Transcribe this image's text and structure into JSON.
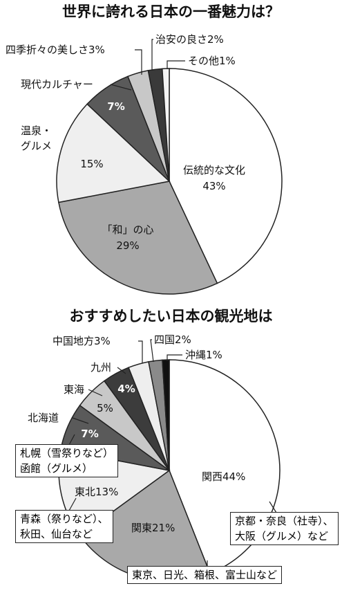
{
  "chart_data": [
    {
      "type": "pie",
      "title": "世界に誇れる日本の一番魅力は？",
      "categories": [
        "伝統的な文化",
        "「和」の心",
        "温泉・\nグルメ",
        "現代カルチャー",
        "四季折々の美しさ",
        "治安の良さ",
        "その他"
      ],
      "values": [
        43,
        29,
        15,
        7,
        3,
        2,
        1
      ],
      "value_labels": [
        "43%",
        "29%",
        "15%",
        "7%",
        "3%",
        "2%",
        "1%"
      ],
      "colors": [
        "#ffffff",
        "#a9a9a9",
        "#efefef",
        "#5a5a5a",
        "#c8c8c8",
        "#3a3a3a",
        "#f4f4f4"
      ]
    },
    {
      "type": "pie",
      "title": "おすすめしたい日本の観光地は",
      "categories": [
        "関西",
        "関東",
        "東北",
        "北海道",
        "東海",
        "九州",
        "中国地方",
        "四国",
        "沖縄"
      ],
      "values": [
        44,
        21,
        13,
        7,
        5,
        4,
        3,
        2,
        1
      ],
      "value_labels": [
        "44%",
        "21%",
        "13%",
        "7%",
        "5%",
        "4%",
        "3%",
        "2%",
        "1%"
      ],
      "colors": [
        "#ffffff",
        "#a9a9a9",
        "#efefef",
        "#5a5a5a",
        "#c8c8c8",
        "#3c3c3c",
        "#eeeeee",
        "#8a8a8a",
        "#111111"
      ],
      "annotations": [
        [
          "札幌（雪祭りなど）",
          "函館（グルメ）"
        ],
        [
          "青森（祭りなど）、",
          "秋田、仙台など"
        ],
        [
          "京都・奈良（社寺）、",
          "大阪（グルメ）など"
        ],
        [
          "東京、日光、箱根、富士山など"
        ]
      ]
    }
  ]
}
